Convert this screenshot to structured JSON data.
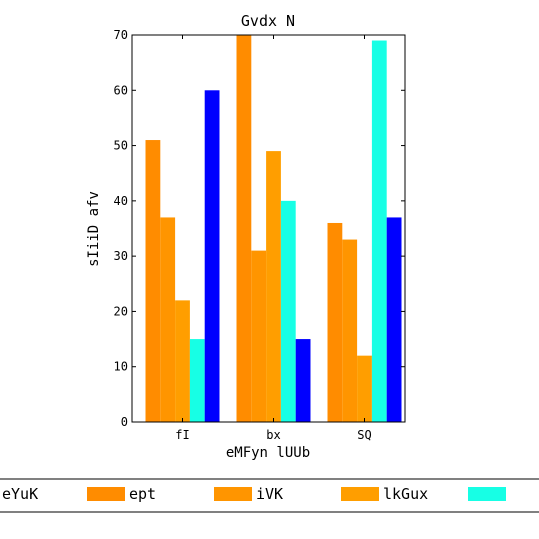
{
  "chart_data": {
    "type": "bar",
    "title": "Gvdx N",
    "xlabel": "eMFyn lUUb",
    "ylabel": "sIiiD afv",
    "categories": [
      "fI",
      "bx",
      "SQ"
    ],
    "ylim": [
      0,
      70
    ],
    "yticks": [
      0,
      10,
      20,
      30,
      40,
      50,
      60,
      70
    ],
    "grid": false,
    "legend_position": "bottom",
    "series": [
      {
        "name": "eYuK",
        "color": "#ff8c00",
        "values": [
          51,
          70,
          36
        ]
      },
      {
        "name": "ept",
        "color": "#ff9500",
        "values": [
          37,
          31,
          33
        ]
      },
      {
        "name": "iVK",
        "color": "#ff9e00",
        "values": [
          22,
          49,
          12
        ]
      },
      {
        "name": "lkGux",
        "color": "#17ffe5",
        "values": [
          15,
          40,
          69
        ]
      },
      {
        "name": "",
        "color": "#0000ff",
        "values": [
          60,
          15,
          37
        ]
      }
    ]
  }
}
